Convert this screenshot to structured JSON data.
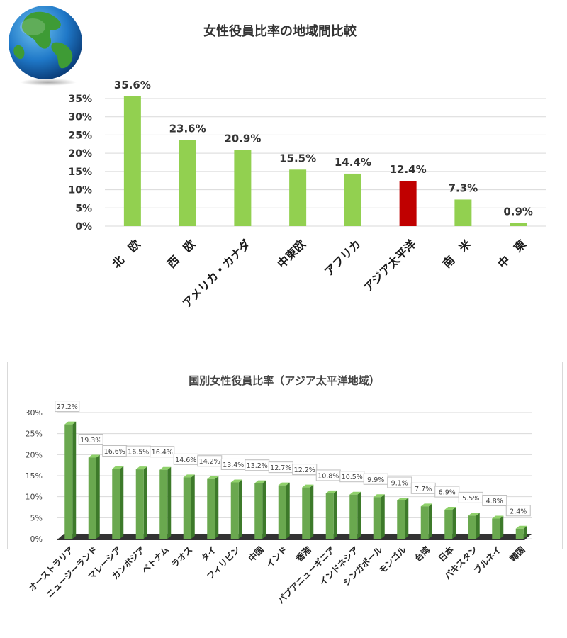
{
  "chart_data": [
    {
      "type": "bar",
      "title": "女性役員比率の地域間比較",
      "categories": [
        "北　欧",
        "西　欧",
        "アメリカ・カナダ",
        "中東欧",
        "アフリカ",
        "アジア太平洋",
        "南　米",
        "中　東"
      ],
      "values": [
        35.6,
        23.6,
        20.9,
        15.5,
        14.4,
        12.4,
        7.3,
        0.9
      ],
      "value_labels": [
        "35.6%",
        "23.6%",
        "20.9%",
        "15.5%",
        "14.4%",
        "12.4%",
        "7.3%",
        "0.9%"
      ],
      "highlight_category": "アジア太平洋",
      "yticks": [
        "0%",
        "5%",
        "10%",
        "15%",
        "20%",
        "25%",
        "30%",
        "35%"
      ],
      "ylim": [
        0,
        35
      ],
      "grid": true,
      "colors": {
        "bar": "#92d050",
        "highlight": "#c00000"
      }
    },
    {
      "type": "bar",
      "title": "国別女性役員比率（アジア太平洋地域）",
      "categories": [
        "オーストラリア",
        "ニュージーランド",
        "マレーシア",
        "カンボジア",
        "ベトナム",
        "ラオス",
        "タイ",
        "フィリピン",
        "中国",
        "インド",
        "香港",
        "パプアニューギニア",
        "インドネシア",
        "シンガポール",
        "モンゴル",
        "台湾",
        "日本",
        "パキスタン",
        "ブルネイ",
        "韓国"
      ],
      "values": [
        27.2,
        19.3,
        16.6,
        16.5,
        16.4,
        14.6,
        14.2,
        13.4,
        13.2,
        12.7,
        12.2,
        10.8,
        10.5,
        9.9,
        9.1,
        7.7,
        6.9,
        5.5,
        4.8,
        2.4
      ],
      "value_labels": [
        "27.2%",
        "19.3%",
        "16.6%",
        "16.5%",
        "16.4%",
        "14.6%",
        "14.2%",
        "13.4%",
        "13.2%",
        "12.7%",
        "12.2%",
        "10.8%",
        "10.5%",
        "9.9%",
        "9.1%",
        "7.7%",
        "6.9%",
        "5.5%",
        "4.8%",
        "2.4%"
      ],
      "yticks": [
        "0%",
        "5%",
        "10%",
        "15%",
        "20%",
        "25%",
        "30%"
      ],
      "ylim": [
        0,
        30
      ],
      "grid": true,
      "style": "3d-column",
      "colors": {
        "bar": "#6aa84f",
        "bar_side": "#3d7a2a",
        "floor": "#333333"
      }
    }
  ]
}
